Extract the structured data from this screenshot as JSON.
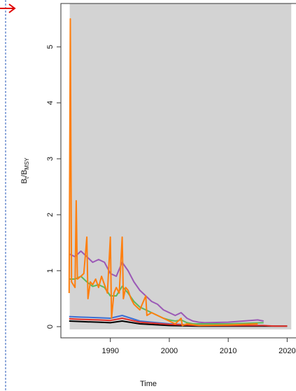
{
  "chart_data": {
    "type": "line",
    "xlabel": "Time",
    "ylabel_parts": [
      "B",
      "t",
      "/B",
      "MSY"
    ],
    "xlim": [
      1981.6,
      2021.5
    ],
    "ylim": [
      -0.2,
      5.775
    ],
    "xticks": [
      1990,
      2000,
      2010,
      2020
    ],
    "yticks": [
      0,
      1,
      2,
      3,
      4,
      5
    ],
    "shaded_period": [
      1983.1,
      2020.7
    ],
    "shade_color": "#d3d3d3",
    "series": [
      {
        "color": "#000000",
        "x": [
          1983,
          1985,
          1988,
          1990,
          1992,
          1995,
          2000,
          2005,
          2010,
          2020
        ],
        "values": [
          0.1,
          0.09,
          0.08,
          0.07,
          0.1,
          0.05,
          0.02,
          0.01,
          0.01,
          0.01
        ]
      },
      {
        "color": "#3b6fd4",
        "x": [
          1983,
          1985,
          1988,
          1990,
          1992,
          1995,
          2000,
          2005,
          2010,
          2016
        ],
        "values": [
          0.18,
          0.17,
          0.16,
          0.15,
          0.2,
          0.1,
          0.05,
          0.02,
          0.02,
          0.02
        ]
      },
      {
        "color": "#e0302a",
        "x": [
          1983,
          1985,
          1988,
          1990,
          1992,
          1995,
          2000,
          2005,
          2010,
          2016,
          2018,
          2020
        ],
        "values": [
          0.14,
          0.13,
          0.12,
          0.11,
          0.15,
          0.08,
          0.04,
          0.02,
          0.02,
          0.02,
          0.01,
          0.01
        ]
      },
      {
        "color": "#9b59b6",
        "x": [
          1983,
          1984,
          1985,
          1986,
          1987,
          1988,
          1989,
          1990,
          1991,
          1992,
          1993,
          1994,
          1995,
          1996,
          1997,
          1998,
          1999,
          2000,
          2001,
          2002,
          2003,
          2004,
          2005,
          2006,
          2010,
          2015,
          2016
        ],
        "values": [
          1.3,
          1.25,
          1.35,
          1.25,
          1.15,
          1.2,
          1.15,
          0.95,
          0.9,
          1.15,
          1.0,
          0.8,
          0.65,
          0.55,
          0.45,
          0.4,
          0.3,
          0.25,
          0.2,
          0.25,
          0.15,
          0.1,
          0.08,
          0.07,
          0.08,
          0.12,
          0.1
        ]
      },
      {
        "color": "#5cb85c",
        "x": [
          1983,
          1984,
          1985,
          1986,
          1987,
          1988,
          1989,
          1990,
          1991,
          1992,
          1993,
          1994,
          1995,
          1996,
          1997,
          1998,
          1999,
          2000,
          2001,
          2002,
          2003,
          2004,
          2010,
          2016
        ],
        "values": [
          0.85,
          0.85,
          0.9,
          0.8,
          0.72,
          0.75,
          0.7,
          0.55,
          0.55,
          0.72,
          0.6,
          0.45,
          0.35,
          0.3,
          0.25,
          0.2,
          0.15,
          0.12,
          0.1,
          0.12,
          0.07,
          0.05,
          0.05,
          0.07
        ]
      },
      {
        "color": "#ff7f0e",
        "x": [
          1983,
          1983.2,
          1983.4,
          1984,
          1984.2,
          1984.4,
          1985,
          1985.5,
          1986,
          1986.2,
          1986.6,
          1987,
          1987.5,
          1988,
          1988.5,
          1989,
          1989.5,
          1990,
          1990.2,
          1990.6,
          1991,
          1991.5,
          1992,
          1992.2,
          1992.6,
          1993,
          1993.5,
          1994,
          1995,
          1996,
          1996.2,
          1997,
          1998,
          1999,
          2000,
          2001,
          2002,
          2002.2,
          2003,
          2005,
          2010,
          2015
        ],
        "values": [
          0.6,
          5.5,
          0.8,
          0.7,
          2.25,
          0.85,
          0.9,
          0.95,
          1.6,
          0.5,
          0.8,
          0.75,
          0.85,
          0.7,
          0.9,
          0.75,
          0.6,
          1.6,
          0.15,
          0.6,
          0.7,
          0.6,
          1.6,
          0.5,
          0.7,
          0.65,
          0.5,
          0.4,
          0.3,
          0.55,
          0.2,
          0.25,
          0.2,
          0.15,
          0.1,
          0.05,
          0.15,
          0.02,
          0.05,
          0.02,
          0.03,
          0.05
        ]
      }
    ]
  }
}
